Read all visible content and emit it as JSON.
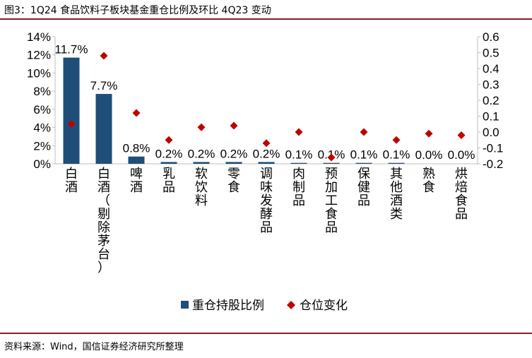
{
  "figure": {
    "title": "图3：1Q24 食品饮料子板块基金重仓比例及环比 4Q23 变动",
    "source": "资料来源：Wind，国信证券经济研究所整理"
  },
  "colors": {
    "bar": "#1f4e79",
    "marker": "#c00000",
    "rule": "#8a1c22",
    "axis": "#bfbfbf"
  },
  "chart_data": {
    "type": "bar",
    "title": "",
    "grid": false,
    "legend_position": "bottom",
    "categories": [
      "白酒",
      "白酒（剔除茅台）",
      "啤酒",
      "乳品",
      "软饮料",
      "零食",
      "调味发酵品",
      "肉制品",
      "预加工食品",
      "保健品",
      "其他酒类",
      "熟食",
      "烘焙食品"
    ],
    "series": [
      {
        "name": "重仓持股比例",
        "type": "bar",
        "axis": "left",
        "values": [
          11.7,
          7.7,
          0.8,
          0.2,
          0.2,
          0.2,
          0.2,
          0.1,
          0.1,
          0.1,
          0.1,
          0.0,
          0.0
        ],
        "labels": [
          "11.7%",
          "7.7%",
          "0.8%",
          "0.2%",
          "0.2%",
          "0.2%",
          "0.2%",
          "0.1%",
          "0.1%",
          "0.1%",
          "0.1%",
          "0.0%",
          "0.0%"
        ]
      },
      {
        "name": "仓位变化",
        "type": "scatter",
        "marker": "diamond",
        "axis": "right",
        "values": [
          0.05,
          0.48,
          0.12,
          -0.05,
          0.03,
          0.04,
          -0.07,
          0.0,
          -0.16,
          0.0,
          -0.05,
          -0.01,
          -0.02
        ]
      }
    ],
    "y_left": {
      "min": 0,
      "max": 14,
      "step": 2,
      "unit": "%",
      "ticks": [
        "0%",
        "2%",
        "4%",
        "6%",
        "8%",
        "10%",
        "12%",
        "14%"
      ]
    },
    "y_right": {
      "min": -0.2,
      "max": 0.6,
      "step": 0.1,
      "ticks": [
        "-0.2",
        "-0.1",
        "0.0",
        "0.1",
        "0.2",
        "0.3",
        "0.4",
        "0.5",
        "0.6"
      ]
    }
  }
}
